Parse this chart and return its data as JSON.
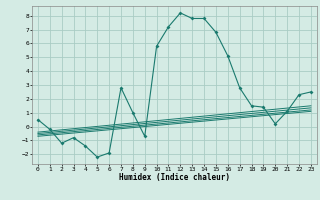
{
  "xlabel": "Humidex (Indice chaleur)",
  "ylabel": "",
  "background_color": "#d4ebe4",
  "grid_color": "#aaccc4",
  "line_color": "#1a7a6e",
  "xlim": [
    -0.5,
    23.5
  ],
  "ylim": [
    -2.7,
    8.7
  ],
  "yticks": [
    -2,
    -1,
    0,
    1,
    2,
    3,
    4,
    5,
    6,
    7,
    8
  ],
  "xticks": [
    0,
    1,
    2,
    3,
    4,
    5,
    6,
    7,
    8,
    9,
    10,
    11,
    12,
    13,
    14,
    15,
    16,
    17,
    18,
    19,
    20,
    21,
    22,
    23
  ],
  "main_x": [
    0,
    1,
    2,
    3,
    4,
    5,
    6,
    7,
    8,
    9,
    10,
    11,
    12,
    13,
    14,
    15,
    16,
    17,
    18,
    19,
    20,
    21,
    22,
    23
  ],
  "main_y": [
    0.5,
    -0.2,
    -1.2,
    -0.8,
    -1.4,
    -2.2,
    -1.9,
    2.8,
    1.0,
    -0.7,
    5.8,
    7.2,
    8.2,
    7.8,
    7.8,
    6.8,
    5.1,
    2.8,
    1.5,
    1.4,
    0.2,
    1.1,
    2.3,
    2.5
  ],
  "band_lines": [
    {
      "x": [
        0,
        23
      ],
      "y": [
        -0.7,
        1.1
      ]
    },
    {
      "x": [
        0,
        23
      ],
      "y": [
        -0.6,
        1.2
      ]
    },
    {
      "x": [
        0,
        23
      ],
      "y": [
        -0.5,
        1.35
      ]
    },
    {
      "x": [
        0,
        23
      ],
      "y": [
        -0.4,
        1.5
      ]
    }
  ]
}
